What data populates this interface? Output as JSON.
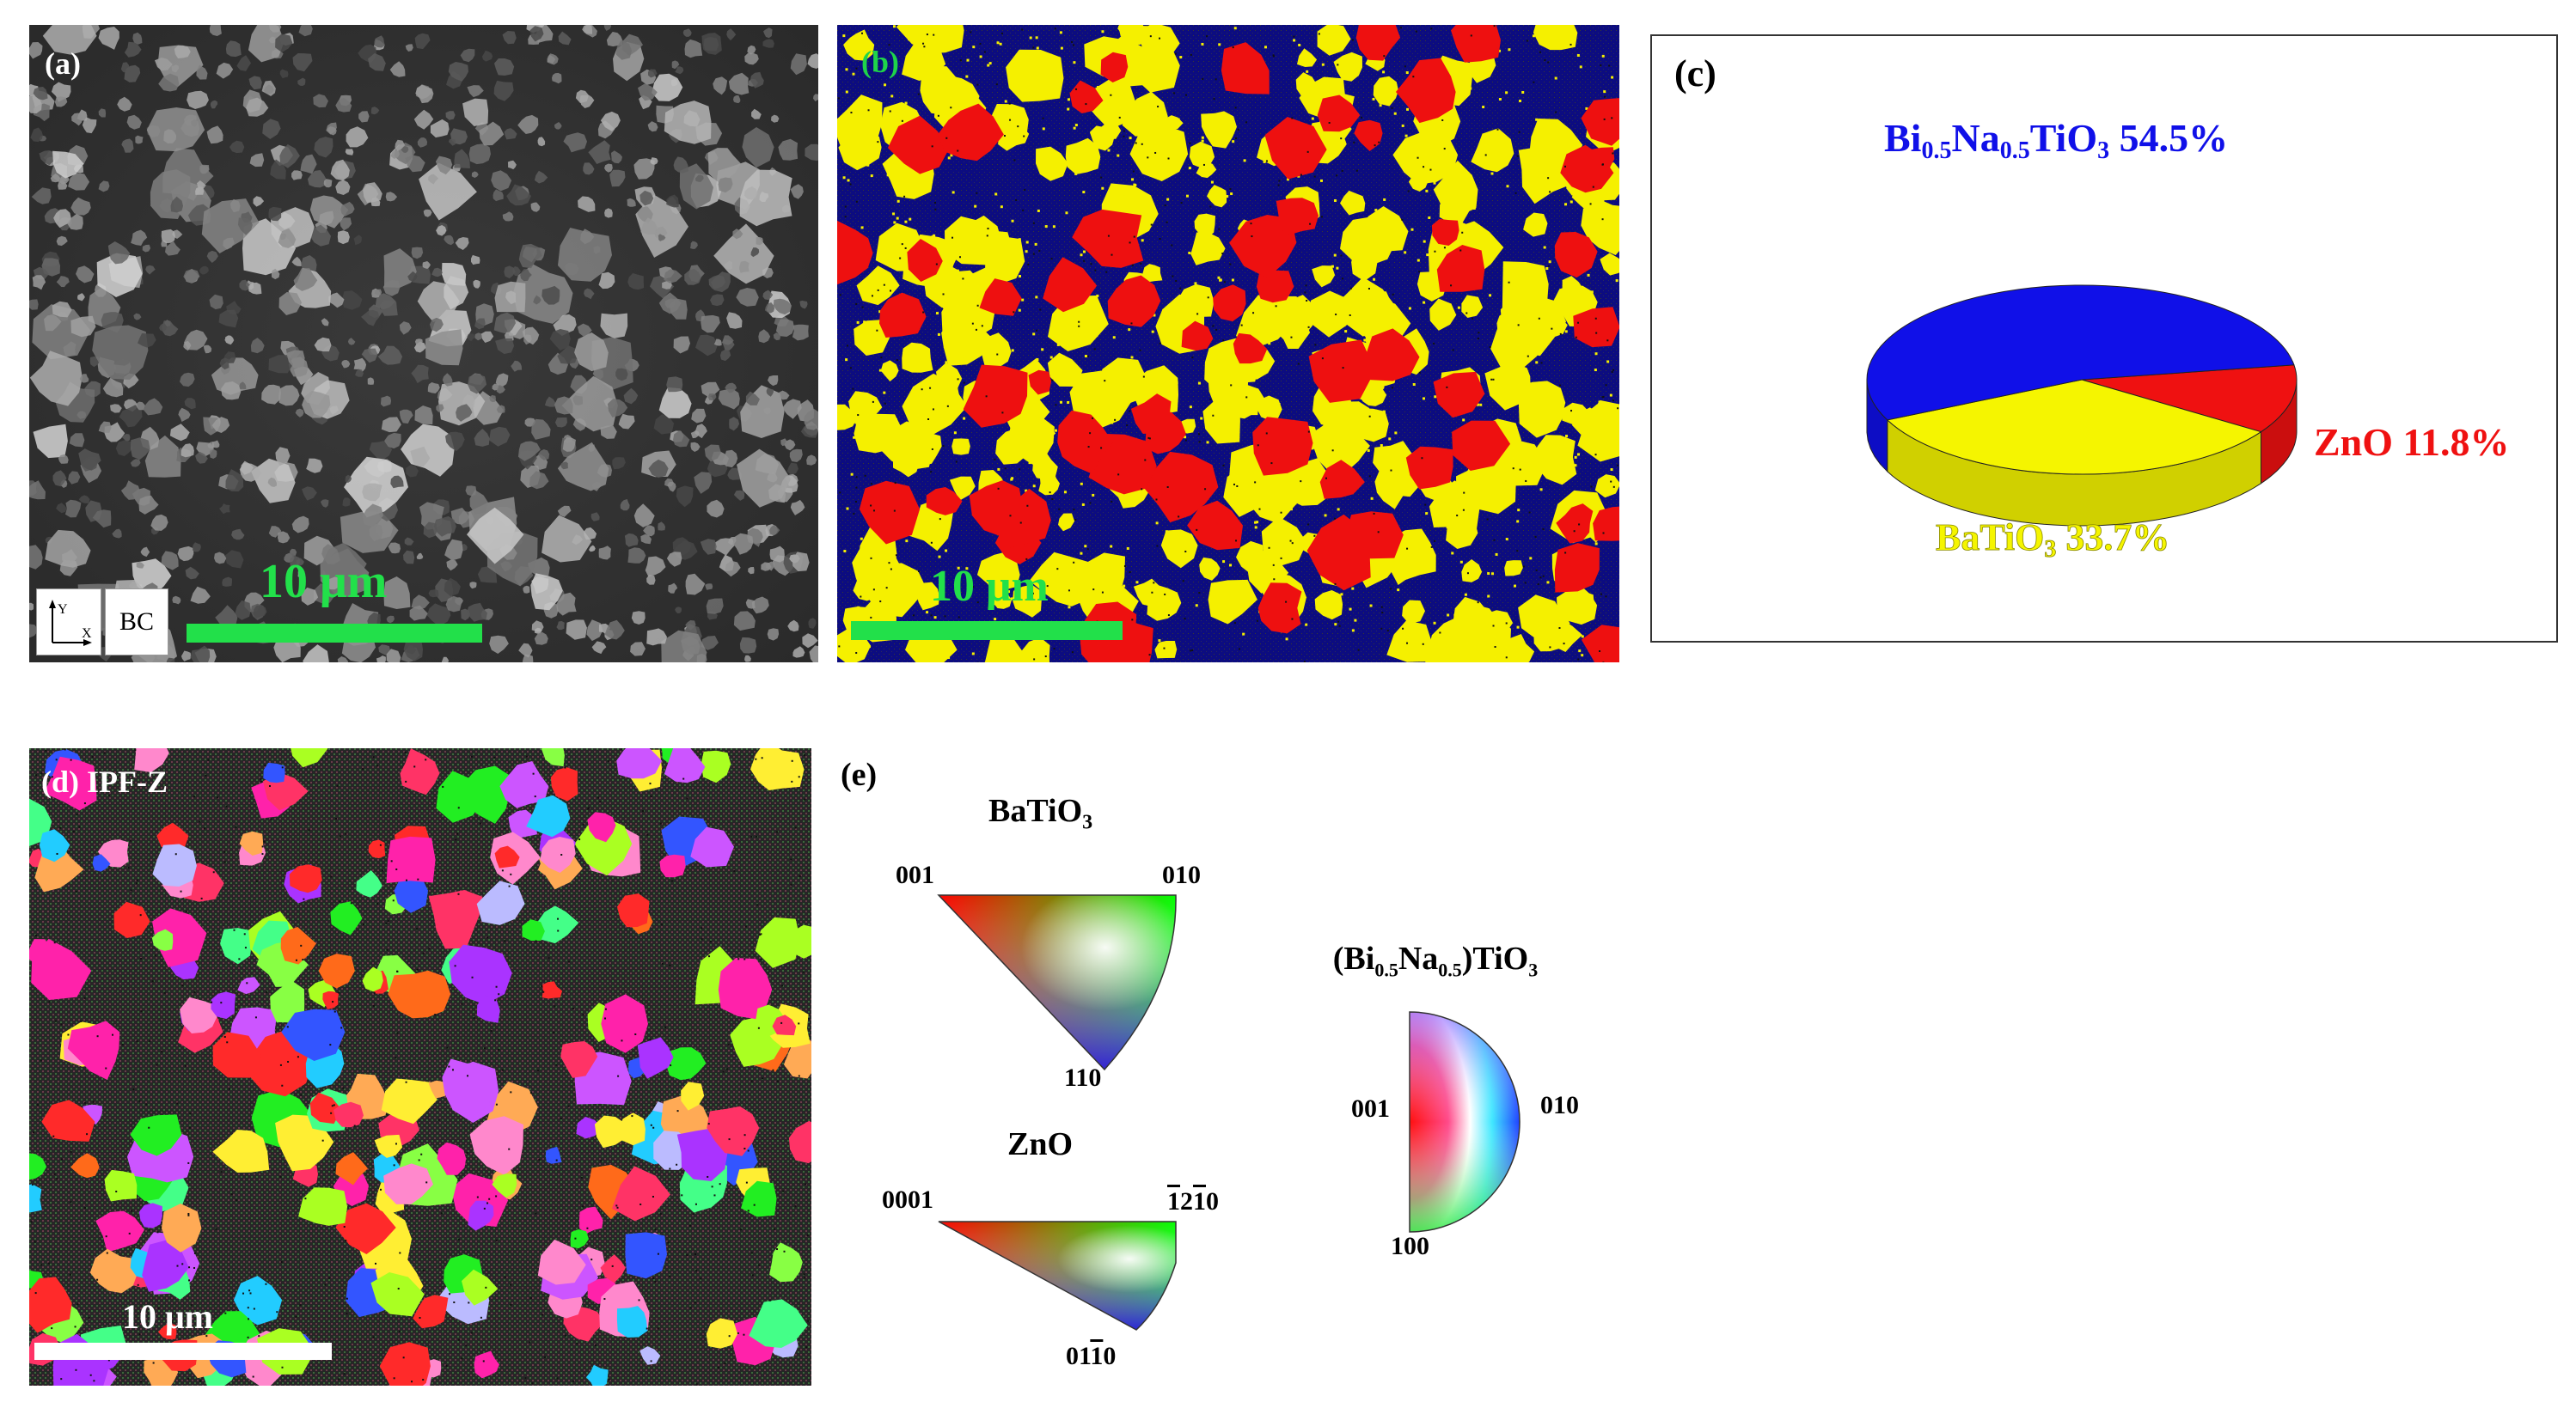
{
  "panels": {
    "a": {
      "label": "(a)",
      "scale_label": "10 μm",
      "axis_y": "Y",
      "axis_x": "X",
      "map_type": "BC"
    },
    "b": {
      "label": "(b)",
      "scale_label": "10 μm"
    },
    "c": {
      "label": "(c)",
      "legend": {
        "bnt": "Bi0.5Na0.5TiO3 54.5%",
        "zno": "ZnO 11.8%",
        "bto": "BaTiO3 33.7%"
      }
    },
    "d": {
      "label": "(d) IPF-Z",
      "scale_label": "10 μm"
    },
    "e": {
      "label": "(e)",
      "batio3_title": "BaTiO3",
      "batio3_001": "001",
      "batio3_010": "010",
      "batio3_110": "110",
      "zno_title": "ZnO",
      "zno_0001": "0001",
      "zno_m12m10": "-12-10",
      "zno_01m10": "01-10",
      "bnt_title": "(Bi0.5Na0.5)TiO3",
      "bnt_001": "001",
      "bnt_010": "010",
      "bnt_100": "100"
    }
  },
  "chart_data": {
    "type": "pie",
    "title": "",
    "labels": [
      "Bi0.5Na0.5TiO3",
      "BaTiO3",
      "ZnO"
    ],
    "values": [
      54.5,
      33.7,
      11.8
    ],
    "colors": [
      "#1010e8",
      "#f5f500",
      "#ef1111"
    ]
  }
}
